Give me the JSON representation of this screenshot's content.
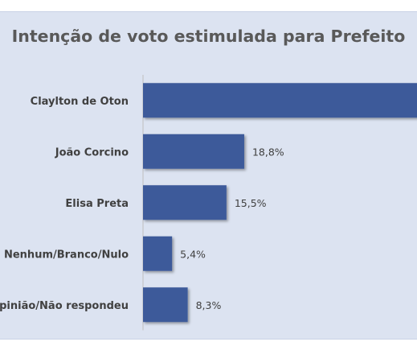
{
  "chart_data": {
    "type": "bar",
    "orientation": "horizontal",
    "title": "Intenção de voto estimulada para Prefeito",
    "categories": [
      "Claylton de Oton",
      "João Corcino",
      "Elisa Preta",
      "Nenhum/Branco/Nulo",
      "Não sabe/Sem opinião/Não respondeu"
    ],
    "series": [
      {
        "values": [
          52.0,
          18.8,
          15.5,
          5.4,
          8.3
        ],
        "data_labels": [
          "",
          "18,8%",
          "15,5%",
          "5,4%",
          "8,3%"
        ],
        "color": "#3c5a9a"
      }
    ],
    "xlim": [
      0,
      50
    ],
    "grid": false,
    "legend": "none",
    "colors": {
      "background": "#dce3f1",
      "bar": "#3c5a9a",
      "text": "#404040",
      "title": "#595959"
    }
  }
}
